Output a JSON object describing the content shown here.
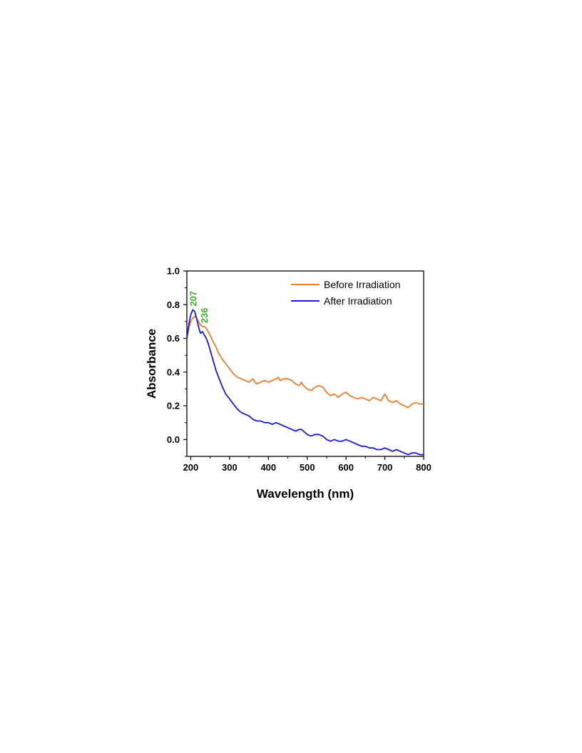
{
  "chart_data": {
    "type": "line",
    "xlabel": "Wavelength (nm)",
    "ylabel": "Absorbance",
    "xlim": [
      190,
      800
    ],
    "ylim": [
      -0.1,
      1.0
    ],
    "x_ticks": [
      "200",
      "300",
      "400",
      "500",
      "600",
      "700",
      "800"
    ],
    "y_ticks": [
      "0.0",
      "0.2",
      "0.4",
      "0.6",
      "0.8",
      "1.0"
    ],
    "grid": false,
    "legend_position": "top-right",
    "series": [
      {
        "name": "Before Irradiation",
        "color": "#ed7d31",
        "x": [
          190,
          195,
          200,
          205,
          210,
          215,
          220,
          225,
          230,
          235,
          240,
          245,
          250,
          255,
          260,
          265,
          270,
          280,
          290,
          300,
          310,
          320,
          330,
          340,
          350,
          355,
          360,
          365,
          370,
          380,
          390,
          400,
          410,
          420,
          425,
          430,
          440,
          450,
          460,
          470,
          480,
          485,
          490,
          500,
          510,
          520,
          530,
          540,
          550,
          560,
          570,
          580,
          590,
          600,
          610,
          620,
          630,
          640,
          650,
          660,
          670,
          680,
          690,
          700,
          710,
          720,
          730,
          740,
          750,
          760,
          770,
          780,
          790,
          800
        ],
        "y": [
          0.6,
          0.66,
          0.7,
          0.72,
          0.73,
          0.72,
          0.7,
          0.68,
          0.67,
          0.67,
          0.66,
          0.64,
          0.62,
          0.59,
          0.57,
          0.55,
          0.52,
          0.48,
          0.45,
          0.42,
          0.39,
          0.37,
          0.36,
          0.35,
          0.34,
          0.35,
          0.36,
          0.34,
          0.33,
          0.34,
          0.35,
          0.34,
          0.35,
          0.36,
          0.37,
          0.35,
          0.36,
          0.36,
          0.35,
          0.33,
          0.32,
          0.34,
          0.32,
          0.3,
          0.29,
          0.31,
          0.32,
          0.31,
          0.28,
          0.26,
          0.27,
          0.25,
          0.27,
          0.28,
          0.26,
          0.25,
          0.24,
          0.25,
          0.24,
          0.23,
          0.25,
          0.24,
          0.23,
          0.27,
          0.23,
          0.22,
          0.23,
          0.21,
          0.2,
          0.19,
          0.21,
          0.22,
          0.21,
          0.21
        ]
      },
      {
        "name": "After Irradiation",
        "color": "#1a1adb",
        "x": [
          190,
          195,
          200,
          205,
          210,
          215,
          220,
          225,
          230,
          235,
          240,
          245,
          250,
          255,
          260,
          265,
          270,
          280,
          290,
          300,
          310,
          320,
          330,
          340,
          350,
          360,
          370,
          380,
          390,
          400,
          410,
          420,
          430,
          440,
          450,
          460,
          470,
          480,
          485,
          490,
          500,
          510,
          520,
          530,
          540,
          550,
          560,
          570,
          580,
          590,
          600,
          610,
          620,
          630,
          640,
          650,
          660,
          670,
          680,
          690,
          700,
          710,
          720,
          730,
          740,
          750,
          760,
          770,
          780,
          790,
          800
        ],
        "y": [
          0.6,
          0.68,
          0.74,
          0.77,
          0.76,
          0.72,
          0.67,
          0.63,
          0.64,
          0.62,
          0.6,
          0.57,
          0.53,
          0.49,
          0.45,
          0.41,
          0.38,
          0.32,
          0.27,
          0.24,
          0.21,
          0.18,
          0.16,
          0.15,
          0.14,
          0.12,
          0.11,
          0.11,
          0.1,
          0.1,
          0.09,
          0.1,
          0.09,
          0.08,
          0.07,
          0.06,
          0.05,
          0.06,
          0.06,
          0.05,
          0.03,
          0.02,
          0.03,
          0.03,
          0.02,
          0.0,
          -0.01,
          0.0,
          -0.01,
          -0.01,
          0.0,
          -0.01,
          -0.02,
          -0.03,
          -0.04,
          -0.04,
          -0.05,
          -0.05,
          -0.06,
          -0.06,
          -0.05,
          -0.06,
          -0.07,
          -0.06,
          -0.07,
          -0.08,
          -0.09,
          -0.08,
          -0.08,
          -0.09,
          -0.09
        ]
      }
    ],
    "annotations": [
      {
        "text": "207",
        "x": 207,
        "y": 0.79,
        "color": "#3cb52a"
      },
      {
        "text": "236",
        "x": 236,
        "y": 0.69,
        "color": "#3cb52a"
      }
    ]
  }
}
